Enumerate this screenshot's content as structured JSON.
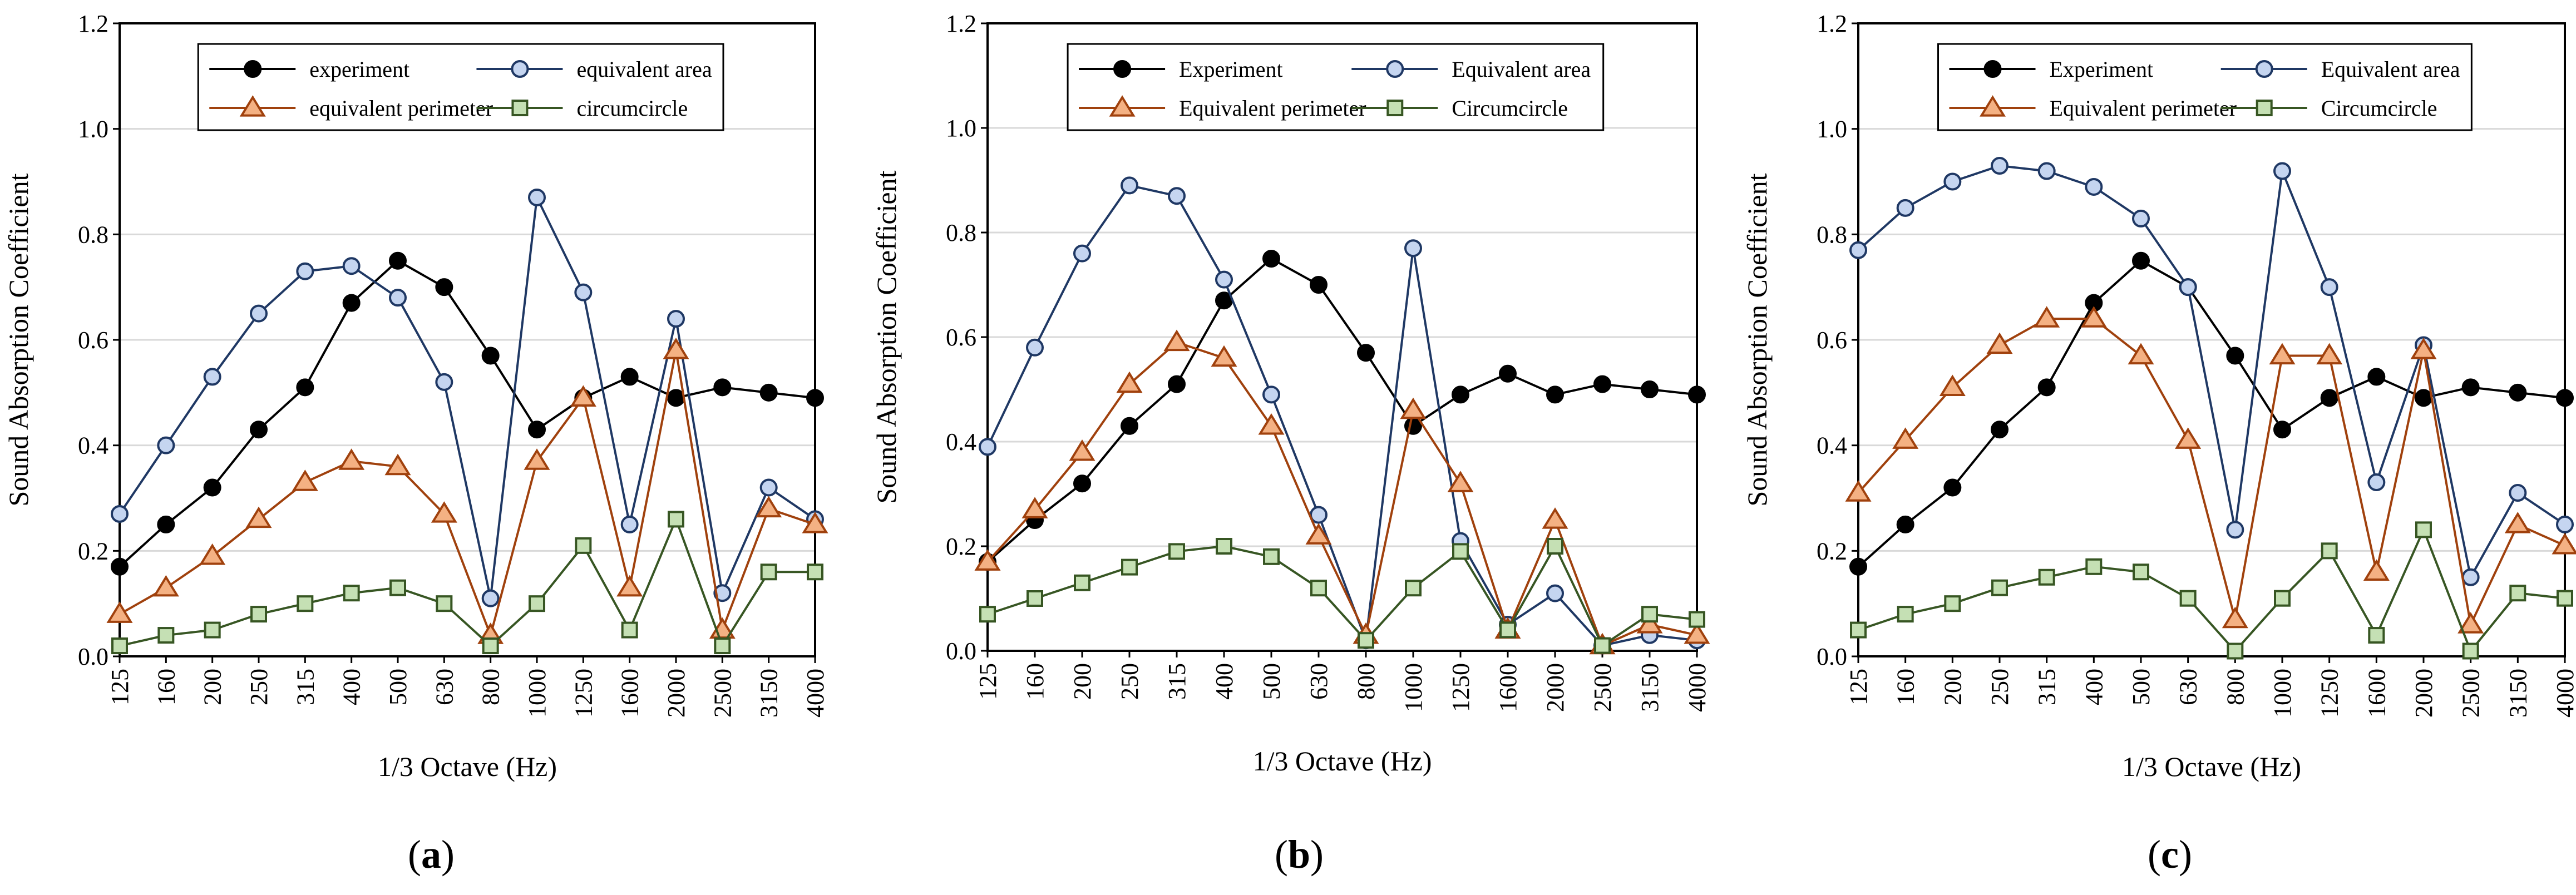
{
  "figure": {
    "panels": [
      "(a)",
      "(b)",
      "(c)"
    ]
  },
  "colors": {
    "experiment": "#000000",
    "equivalent_area": "#1f3864",
    "equivalent_area_fill": "#c5d5f0",
    "equivalent_perimeter": "#a0410d",
    "equivalent_perimeter_fill": "#f4b183",
    "circumcircle": "#375623",
    "circumcircle_fill": "#c5e0b4",
    "grid": "#d9d9d9",
    "axis": "#000000"
  },
  "chart_data": [
    {
      "type": "line",
      "panel_label": "(a)",
      "xlabel": "1/3 Octave (Hz)",
      "ylabel": "Sound Absorption Coefficient",
      "ylim": [
        0,
        1.2
      ],
      "yticks": [
        "0.0",
        "0.2",
        "0.4",
        "0.6",
        "0.8",
        "1.0",
        "1.2"
      ],
      "grid": true,
      "legend_position": "top",
      "categories": [
        "125",
        "160",
        "200",
        "250",
        "315",
        "400",
        "500",
        "630",
        "800",
        "1000",
        "1250",
        "1600",
        "2000",
        "2500",
        "3150",
        "4000"
      ],
      "series": [
        {
          "key": "experiment",
          "name": "experiment",
          "marker": "circle",
          "values": [
            0.17,
            0.25,
            0.32,
            0.43,
            0.51,
            0.67,
            0.75,
            0.7,
            0.57,
            0.43,
            0.49,
            0.53,
            0.49,
            0.51,
            0.5,
            0.49
          ]
        },
        {
          "key": "equivalent_area",
          "name": "equivalent area",
          "marker": "circle",
          "values": [
            0.27,
            0.4,
            0.53,
            0.65,
            0.73,
            0.74,
            0.68,
            0.52,
            0.11,
            0.87,
            0.69,
            0.25,
            0.64,
            0.12,
            0.32,
            0.26
          ]
        },
        {
          "key": "equivalent_perimeter",
          "name": "equivalent perimeter",
          "marker": "triangle",
          "values": [
            0.08,
            0.13,
            0.19,
            0.26,
            0.33,
            0.37,
            0.36,
            0.27,
            0.04,
            0.37,
            0.49,
            0.13,
            0.58,
            0.05,
            0.28,
            0.25
          ]
        },
        {
          "key": "circumcircle",
          "name": "circumcircle",
          "marker": "square",
          "values": [
            0.02,
            0.04,
            0.05,
            0.08,
            0.1,
            0.12,
            0.13,
            0.1,
            0.02,
            0.1,
            0.21,
            0.05,
            0.26,
            0.02,
            0.16,
            0.16
          ]
        }
      ]
    },
    {
      "type": "line",
      "panel_label": "(b)",
      "xlabel": "1/3 Octave (Hz)",
      "ylabel": "Sound Absorption Coefficient",
      "ylim": [
        0,
        1.2
      ],
      "yticks": [
        "0.0",
        "0.2",
        "0.4",
        "0.6",
        "0.8",
        "1.0",
        "1.2"
      ],
      "grid": true,
      "legend_position": "top",
      "categories": [
        "125",
        "160",
        "200",
        "250",
        "315",
        "400",
        "500",
        "630",
        "800",
        "1000",
        "1250",
        "1600",
        "2000",
        "2500",
        "3150",
        "4000"
      ],
      "series": [
        {
          "key": "experiment",
          "name": "Experiment",
          "marker": "circle",
          "values": [
            0.17,
            0.25,
            0.32,
            0.43,
            0.51,
            0.67,
            0.75,
            0.7,
            0.57,
            0.43,
            0.49,
            0.53,
            0.49,
            0.51,
            0.5,
            0.49
          ]
        },
        {
          "key": "equivalent_area",
          "name": "Equivalent area",
          "marker": "circle",
          "values": [
            0.39,
            0.58,
            0.76,
            0.89,
            0.87,
            0.71,
            0.49,
            0.26,
            0.02,
            0.77,
            0.21,
            0.05,
            0.11,
            0.01,
            0.03,
            0.02
          ]
        },
        {
          "key": "equivalent_perimeter",
          "name": "Equivalent perimeter",
          "marker": "triangle",
          "values": [
            0.17,
            0.27,
            0.38,
            0.51,
            0.59,
            0.56,
            0.43,
            0.22,
            0.03,
            0.46,
            0.32,
            0.04,
            0.25,
            0.01,
            0.05,
            0.03
          ]
        },
        {
          "key": "circumcircle",
          "name": "Circumcircle",
          "marker": "square",
          "values": [
            0.07,
            0.1,
            0.13,
            0.16,
            0.19,
            0.2,
            0.18,
            0.12,
            0.02,
            0.12,
            0.19,
            0.04,
            0.2,
            0.01,
            0.07,
            0.06
          ]
        }
      ]
    },
    {
      "type": "line",
      "panel_label": "(c)",
      "xlabel": "1/3 Octave (Hz)",
      "ylabel": "Sound Absorption Coefficient",
      "ylim": [
        0,
        1.2
      ],
      "yticks": [
        "0.0",
        "0.2",
        "0.4",
        "0.6",
        "0.8",
        "1.0",
        "1.2"
      ],
      "grid": true,
      "legend_position": "top",
      "categories": [
        "125",
        "160",
        "200",
        "250",
        "315",
        "400",
        "500",
        "630",
        "800",
        "1000",
        "1250",
        "1600",
        "2000",
        "2500",
        "3150",
        "4000"
      ],
      "series": [
        {
          "key": "experiment",
          "name": "Experiment",
          "marker": "circle",
          "values": [
            0.17,
            0.25,
            0.32,
            0.43,
            0.51,
            0.67,
            0.75,
            0.7,
            0.57,
            0.43,
            0.49,
            0.53,
            0.49,
            0.51,
            0.5,
            0.49
          ]
        },
        {
          "key": "equivalent_area",
          "name": "Equivalent area",
          "marker": "circle",
          "values": [
            0.77,
            0.85,
            0.9,
            0.93,
            0.92,
            0.89,
            0.83,
            0.7,
            0.24,
            0.92,
            0.7,
            0.33,
            0.59,
            0.15,
            0.31,
            0.25
          ]
        },
        {
          "key": "equivalent_perimeter",
          "name": "Equivalent perimeter",
          "marker": "triangle",
          "values": [
            0.31,
            0.41,
            0.51,
            0.59,
            0.64,
            0.64,
            0.57,
            0.41,
            0.07,
            0.57,
            0.57,
            0.16,
            0.58,
            0.06,
            0.25,
            0.21
          ]
        },
        {
          "key": "circumcircle",
          "name": "Circumcircle",
          "marker": "square",
          "values": [
            0.05,
            0.08,
            0.1,
            0.13,
            0.15,
            0.17,
            0.16,
            0.11,
            0.01,
            0.11,
            0.2,
            0.04,
            0.24,
            0.01,
            0.12,
            0.11
          ]
        }
      ]
    }
  ]
}
